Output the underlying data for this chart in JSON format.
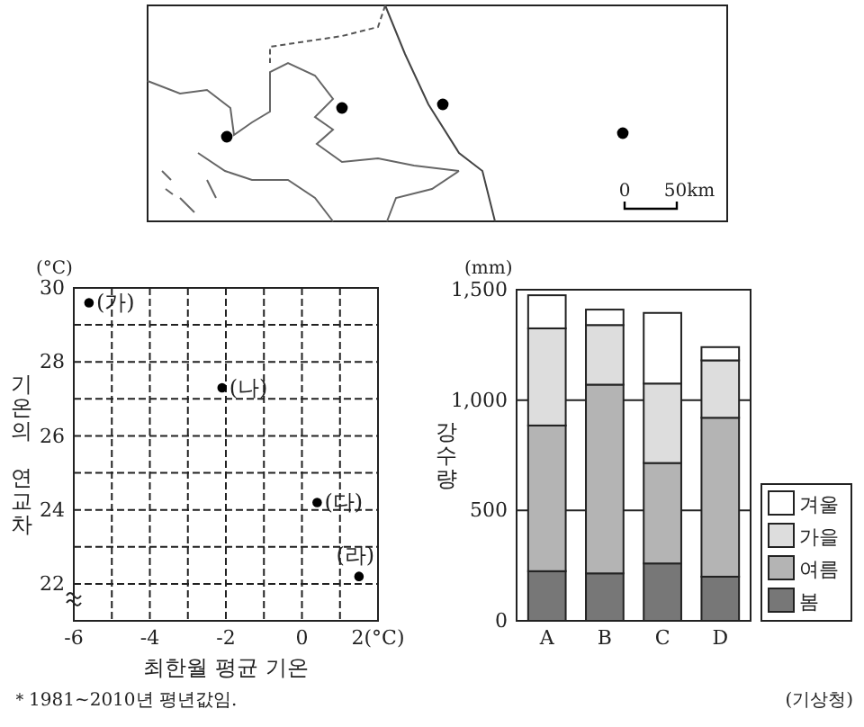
{
  "chart_data": [
    {
      "type": "other",
      "annotations": [
        "0",
        "50km"
      ]
    },
    {
      "type": "scatter",
      "xlabel": "최한월 평균 기온",
      "ylabel": "기온의 연교차",
      "x": [
        -5.6,
        -2.1,
        0.4,
        1.5
      ],
      "series": [
        {
          "color": "#000000",
          "values": [
            29.6,
            27.3,
            24.2,
            22.2
          ]
        }
      ],
      "xlim": [
        -6,
        2
      ],
      "xticks": [
        -6,
        {
          "value": -5,
          "label": null
        },
        -4,
        {
          "value": -3,
          "label": null
        },
        -2,
        {
          "value": -1,
          "label": null
        },
        0,
        {
          "value": 1,
          "label": null
        },
        {
          "value": 2,
          "label": "2(°C)"
        }
      ],
      "ylim": [
        21,
        30
      ],
      "yticks": [
        {
          "value": 21,
          "label": null
        },
        22,
        {
          "value": 23,
          "label": null
        },
        24,
        {
          "value": 25,
          "label": null
        },
        26,
        {
          "value": 27,
          "label": null
        },
        28,
        {
          "value": 29,
          "label": null
        },
        30
      ],
      "grid": true,
      "marker": "circle",
      "annotations": [
        "(°C)",
        {
          "text": "(가)",
          "x": -5.6,
          "y": 29.6
        },
        {
          "text": "(나)",
          "x": -2.1,
          "y": 27.3
        },
        {
          "text": "(다)",
          "x": 0.4,
          "y": 24.2
        },
        {
          "text": "(라)",
          "x": 1.5,
          "y": 22.2
        },
        "＊1981~2010년 평년값임."
      ]
    },
    {
      "type": "bar",
      "stacked": true,
      "ylabel": "강수량",
      "categories": [
        "A",
        "B",
        "C",
        "D"
      ],
      "series": [
        {
          "name": "봄",
          "color": "#777777",
          "values": [
            225,
            215,
            260,
            200
          ]
        },
        {
          "name": "여름",
          "color": "#b4b4b4",
          "values": [
            660,
            855,
            455,
            720
          ]
        },
        {
          "name": "가을",
          "color": "#dddddd",
          "values": [
            440,
            270,
            360,
            260
          ]
        },
        {
          "name": "겨울",
          "color": "#ffffff",
          "values": [
            150,
            70,
            320,
            60
          ]
        }
      ],
      "ylim": [
        0,
        1500
      ],
      "yticks": [
        0,
        500,
        {
          "value": 1000,
          "label": "1,000"
        },
        {
          "value": 1500,
          "label": "1,500"
        }
      ],
      "grid": "y",
      "legend": "bottom right",
      "annotations": [
        "(mm)",
        "(기상청)"
      ]
    }
  ]
}
